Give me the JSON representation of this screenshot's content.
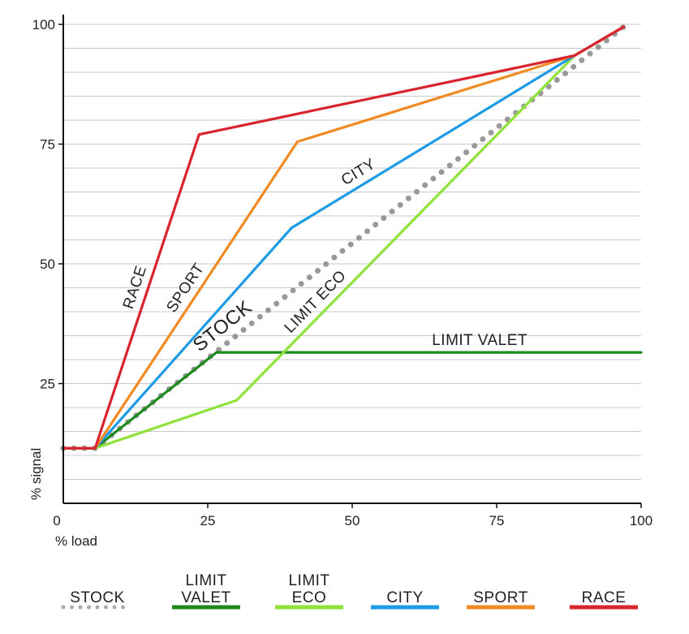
{
  "chart_data": {
    "type": "line",
    "xlabel": "% load",
    "ylabel": "% signal",
    "xlim": [
      0,
      100
    ],
    "ylim": [
      0,
      100
    ],
    "x_ticks": [
      "0",
      "25",
      "50",
      "75",
      "100"
    ],
    "y_ticks": [
      "25",
      "50",
      "75",
      "100"
    ],
    "grid": "horizontal",
    "series": [
      {
        "name": "STOCK",
        "label": "STOCK",
        "color": "#999999",
        "style": "dotted",
        "points": [
          [
            0,
            11.5
          ],
          [
            5.5,
            11.5
          ],
          [
            97,
            99.5
          ]
        ]
      },
      {
        "name": "LIMIT VALET",
        "label": "LIMIT VALET",
        "color": "#1c8a1c",
        "style": "solid",
        "points": [
          [
            0,
            11.5
          ],
          [
            5.5,
            11.5
          ],
          [
            26.5,
            31.5
          ],
          [
            100,
            31.5
          ]
        ]
      },
      {
        "name": "LIMIT ECO",
        "label": "LIMIT ECO",
        "color": "#8ee23a",
        "style": "solid",
        "points": [
          [
            0,
            11.5
          ],
          [
            5.5,
            11.5
          ],
          [
            30,
            21.5
          ],
          [
            88.5,
            93.5
          ],
          [
            97,
            99.5
          ]
        ]
      },
      {
        "name": "CITY",
        "label": "CITY",
        "color": "#1e9be6",
        "style": "solid",
        "points": [
          [
            0,
            11.5
          ],
          [
            5.5,
            11.5
          ],
          [
            39.5,
            57.5
          ],
          [
            88.5,
            93.5
          ],
          [
            97,
            99.5
          ]
        ]
      },
      {
        "name": "SPORT",
        "label": "SPORT",
        "color": "#f08a22",
        "style": "solid",
        "points": [
          [
            0,
            11.5
          ],
          [
            5.5,
            11.5
          ],
          [
            40.5,
            75.5
          ],
          [
            88.5,
            93.5
          ],
          [
            97,
            99.5
          ]
        ]
      },
      {
        "name": "RACE",
        "label": "RACE",
        "color": "#d9232d",
        "style": "solid",
        "points": [
          [
            0,
            11.5
          ],
          [
            5.5,
            11.5
          ],
          [
            23.5,
            77
          ],
          [
            88.5,
            93.5
          ],
          [
            97,
            99.5
          ]
        ]
      }
    ],
    "legend": [
      {
        "lines": [
          "STOCK"
        ],
        "color": "#aaaaaa",
        "style": "dotted"
      },
      {
        "lines": [
          "LIMIT",
          "VALET"
        ],
        "color": "#1c8a1c",
        "style": "solid"
      },
      {
        "lines": [
          "LIMIT",
          "ECO"
        ],
        "color": "#8ee23a",
        "style": "solid"
      },
      {
        "lines": [
          "CITY"
        ],
        "color": "#1e9be6",
        "style": "solid"
      },
      {
        "lines": [
          "SPORT"
        ],
        "color": "#f08a22",
        "style": "solid"
      },
      {
        "lines": [
          "RACE"
        ],
        "color": "#d9232d",
        "style": "solid"
      }
    ]
  }
}
